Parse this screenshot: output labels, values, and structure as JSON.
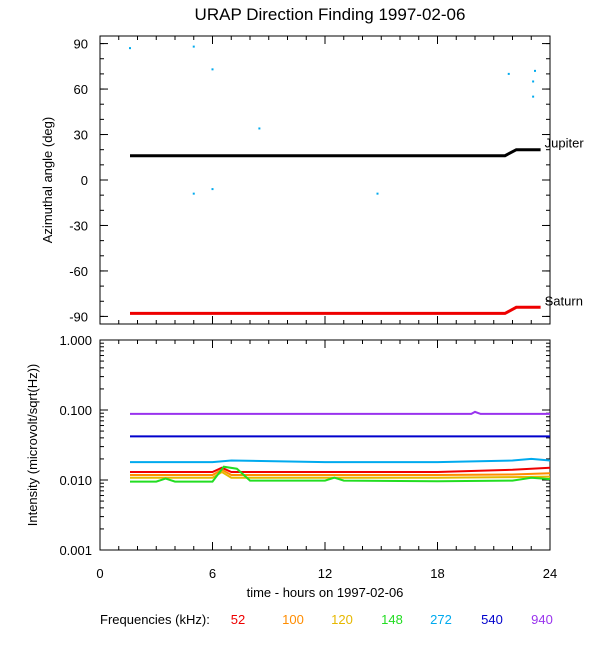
{
  "chart_data": [
    {
      "type": "scatter",
      "title": "URAP Direction Finding  1997-02-06",
      "ylabel": "Azimuthal angle (deg)",
      "xlim": [
        0,
        24
      ],
      "ylim": [
        -95,
        95
      ],
      "yticks": [
        90,
        60,
        30,
        0,
        -30,
        -60,
        -90
      ],
      "lines": [
        {
          "name": "Jupiter",
          "color": "#000000",
          "points": [
            [
              1.6,
              16
            ],
            [
              21.6,
              16
            ],
            [
              22.2,
              20
            ],
            [
              23.5,
              20
            ]
          ]
        },
        {
          "name": "Saturn",
          "color": "#ee0000",
          "points": [
            [
              1.6,
              -88
            ],
            [
              21.6,
              -88
            ],
            [
              22.2,
              -84
            ],
            [
              23.5,
              -84
            ]
          ]
        }
      ],
      "scatter_points": {
        "color": "#00aaee",
        "points": [
          [
            1.6,
            87
          ],
          [
            5.0,
            88
          ],
          [
            6.0,
            73
          ],
          [
            8.5,
            34
          ],
          [
            5.0,
            -9
          ],
          [
            6.0,
            -6
          ],
          [
            14.8,
            -9
          ],
          [
            21.8,
            70
          ],
          [
            23.2,
            72
          ],
          [
            23.1,
            65
          ],
          [
            23.1,
            55
          ]
        ]
      }
    },
    {
      "type": "line",
      "ylabel": "Intensity (microvolt/sqrt(Hz))",
      "xlabel": "time - hours on 1997-02-06",
      "xlim": [
        0,
        24
      ],
      "xticks": [
        0,
        6,
        12,
        18,
        24
      ],
      "yscale": "log",
      "ylim": [
        0.001,
        1.0
      ],
      "yticks": [
        1.0,
        0.1,
        0.01,
        0.001
      ],
      "ytick_labels": [
        "1.000",
        "0.100",
        "0.010",
        "0.001"
      ],
      "series": [
        {
          "name": "52",
          "color": "#ee0000",
          "x": [
            0,
            6,
            6.5,
            7,
            12,
            18,
            22,
            24
          ],
          "y": [
            0.013,
            0.013,
            0.015,
            0.013,
            0.013,
            0.013,
            0.014,
            0.015
          ]
        },
        {
          "name": "100",
          "color": "#ff8c00",
          "x": [
            0,
            6,
            6.5,
            7,
            12,
            18,
            22,
            24
          ],
          "y": [
            0.0118,
            0.0118,
            0.014,
            0.0118,
            0.0118,
            0.0118,
            0.012,
            0.0125
          ]
        },
        {
          "name": "120",
          "color": "#e6b800",
          "x": [
            0,
            6,
            6.5,
            7,
            12,
            18,
            22,
            24
          ],
          "y": [
            0.0108,
            0.0108,
            0.013,
            0.0108,
            0.0108,
            0.0108,
            0.011,
            0.0112
          ]
        },
        {
          "name": "148",
          "color": "#22dd22",
          "x": [
            0,
            3,
            3.5,
            4,
            6,
            6.6,
            7.3,
            8,
            12,
            12.5,
            13,
            18,
            22,
            23,
            24
          ],
          "y": [
            0.0095,
            0.0095,
            0.0105,
            0.0095,
            0.0095,
            0.0155,
            0.0145,
            0.0098,
            0.0098,
            0.0108,
            0.0098,
            0.0096,
            0.0098,
            0.0108,
            0.0103
          ]
        },
        {
          "name": "272",
          "color": "#00aaee",
          "x": [
            0,
            6,
            7,
            12,
            18,
            22,
            23,
            24
          ],
          "y": [
            0.018,
            0.018,
            0.019,
            0.018,
            0.018,
            0.019,
            0.02,
            0.019
          ]
        },
        {
          "name": "540",
          "color": "#0000cc",
          "x": [
            0,
            12,
            18,
            24
          ],
          "y": [
            0.042,
            0.042,
            0.042,
            0.042
          ]
        },
        {
          "name": "940",
          "color": "#9933ee",
          "x": [
            0,
            19.8,
            20.0,
            20.3,
            24
          ],
          "y": [
            0.088,
            0.088,
            0.094,
            0.088,
            0.088
          ]
        }
      ],
      "legend": {
        "label": "Frequencies (kHz):",
        "placement": "bottom"
      }
    }
  ]
}
